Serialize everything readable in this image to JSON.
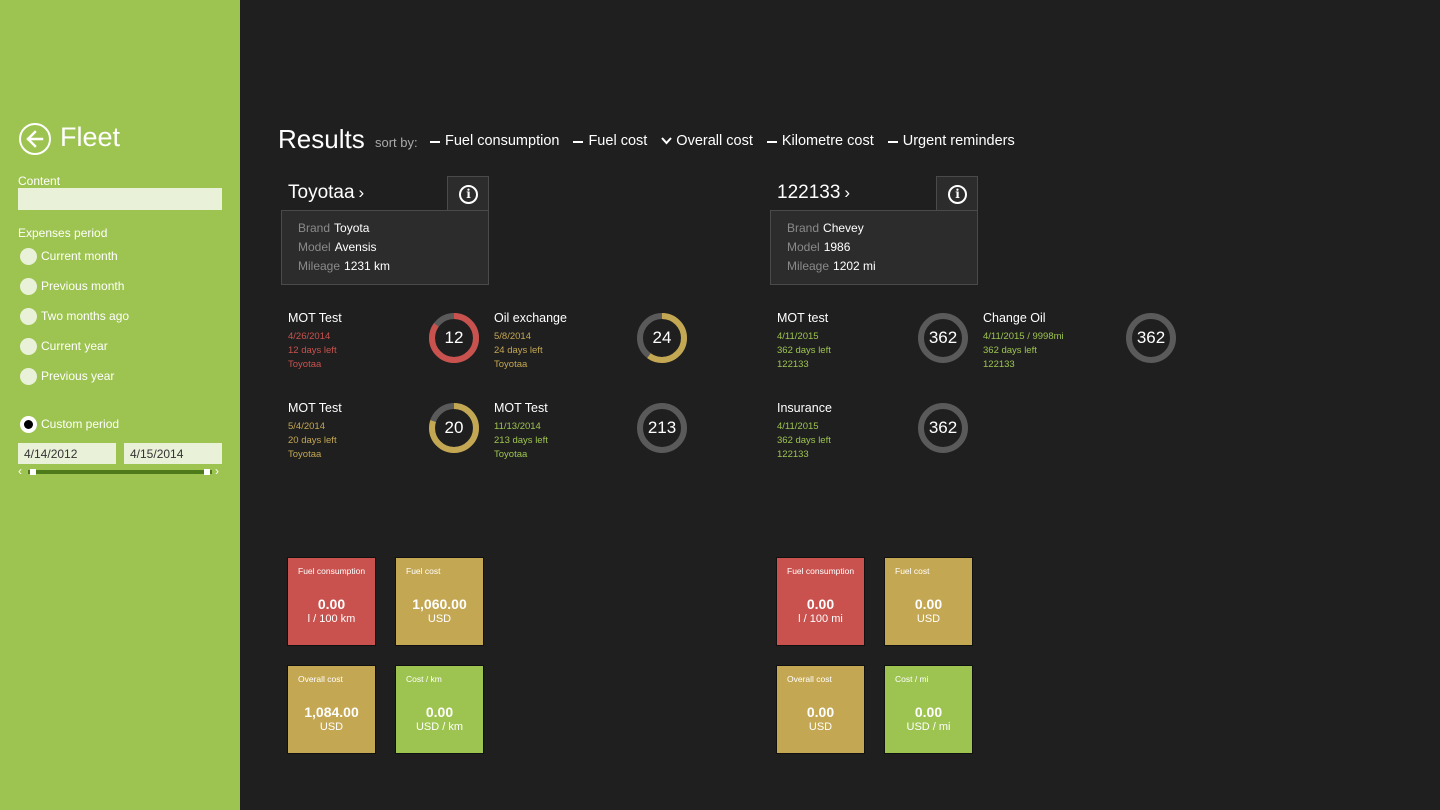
{
  "colors": {
    "sidebar": "#9dc450",
    "bg": "#1f1f1f",
    "red": "#c9524e",
    "gold": "#c4a752",
    "green": "#9dc450",
    "grey": "#5a5a5a"
  },
  "sidebar": {
    "title": "Fleet",
    "content_label": "Content",
    "content_value": "",
    "period_label": "Expenses period",
    "options": [
      {
        "label": "Current month",
        "checked": false
      },
      {
        "label": "Previous month",
        "checked": false
      },
      {
        "label": "Two months ago",
        "checked": false
      },
      {
        "label": "Current year",
        "checked": false
      },
      {
        "label": "Previous year",
        "checked": false
      }
    ],
    "custom": {
      "label": "Custom period",
      "checked": true
    },
    "date_from": "4/14/2012",
    "date_to": "4/15/2014"
  },
  "header": {
    "title": "Results",
    "sort_label": "sort by:",
    "sort_options": [
      {
        "label": "Fuel consumption",
        "selected": false
      },
      {
        "label": "Fuel cost",
        "selected": false
      },
      {
        "label": "Overall cost",
        "selected": true
      },
      {
        "label": "Kilometre cost",
        "selected": false
      },
      {
        "label": "Urgent reminders",
        "selected": false
      }
    ]
  },
  "vehicles": [
    {
      "name": "Toyotaa",
      "details": [
        {
          "key": "Brand",
          "value": "Toyota"
        },
        {
          "key": "Model",
          "value": "Avensis"
        },
        {
          "key": "Mileage",
          "value": "1231 km"
        }
      ],
      "reminders": [
        {
          "title": "MOT Test",
          "date": "4/26/2014",
          "left": "12 days left",
          "vehicle": "Toyotaa",
          "number": "12",
          "status": "red",
          "progress": 0.85
        },
        {
          "title": "Oil exchange",
          "date": "5/8/2014",
          "left": "24 days left",
          "vehicle": "Toyotaa",
          "number": "24",
          "status": "gold",
          "progress": 0.6
        },
        {
          "title": "MOT Test",
          "date": "5/4/2014",
          "left": "20 days left",
          "vehicle": "Toyotaa",
          "number": "20",
          "status": "gold",
          "progress": 0.8
        },
        {
          "title": "MOT Test",
          "date": "11/13/2014",
          "left": "213 days left",
          "vehicle": "Toyotaa",
          "number": "213",
          "status": "green",
          "progress": 0
        }
      ],
      "tiles": [
        {
          "label": "Fuel consumption",
          "value": "0.00",
          "unit": "l / 100 km",
          "color": "red"
        },
        {
          "label": "Fuel cost",
          "value": "1,060.00",
          "unit": "USD",
          "color": "gold"
        },
        {
          "label": "Overall cost",
          "value": "1,084.00",
          "unit": "USD",
          "color": "gold"
        },
        {
          "label": "Cost / km",
          "value": "0.00",
          "unit": "USD / km",
          "color": "green"
        }
      ]
    },
    {
      "name": "122133",
      "details": [
        {
          "key": "Brand",
          "value": "Chevey"
        },
        {
          "key": "Model",
          "value": "1986"
        },
        {
          "key": "Mileage",
          "value": "1202 mi"
        }
      ],
      "reminders": [
        {
          "title": "MOT test",
          "date": "4/11/2015",
          "left": "362 days left",
          "vehicle": "122133",
          "number": "362",
          "status": "green",
          "progress": 0
        },
        {
          "title": "Change Oil",
          "date": "4/11/2015 / 9998mi",
          "left": "362 days left",
          "vehicle": "122133",
          "number": "362",
          "status": "green",
          "progress": 0
        },
        {
          "title": "Insurance",
          "date": "4/11/2015",
          "left": "362 days left",
          "vehicle": "122133",
          "number": "362",
          "status": "green",
          "progress": 0
        }
      ],
      "tiles": [
        {
          "label": "Fuel consumption",
          "value": "0.00",
          "unit": "l / 100 mi",
          "color": "red"
        },
        {
          "label": "Fuel cost",
          "value": "0.00",
          "unit": "USD",
          "color": "gold"
        },
        {
          "label": "Overall cost",
          "value": "0.00",
          "unit": "USD",
          "color": "gold"
        },
        {
          "label": "Cost / mi",
          "value": "0.00",
          "unit": "USD / mi",
          "color": "green"
        }
      ]
    }
  ]
}
